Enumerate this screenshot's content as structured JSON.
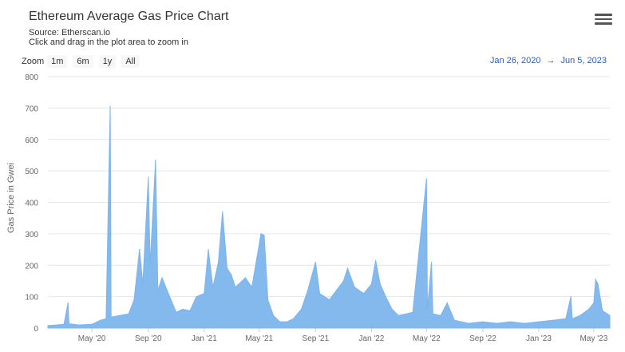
{
  "title": "Ethereum Average Gas Price Chart",
  "subtitle": {
    "source": "Source: Etherscan.io",
    "hint": "Click and drag in the plot area to zoom in"
  },
  "zoom": {
    "label": "Zoom",
    "buttons": [
      "1m",
      "6m",
      "1y",
      "All"
    ]
  },
  "range": {
    "from": "Jan 26, 2020",
    "arrow": "→",
    "to": "Jun 5, 2023"
  },
  "menu_icon": "hamburger-menu-icon",
  "chart_data": {
    "type": "area",
    "ylabel": "Gas Price in Gwei",
    "ylim": [
      0,
      800
    ],
    "yticks": [
      0,
      100,
      200,
      300,
      400,
      500,
      600,
      700,
      800
    ],
    "xlim": [
      "2020-01-26",
      "2023-06-05"
    ],
    "xticks": [
      {
        "date": "2020-05-01",
        "label": "May '20"
      },
      {
        "date": "2020-09-01",
        "label": "Sep '20"
      },
      {
        "date": "2021-01-01",
        "label": "Jan '21"
      },
      {
        "date": "2021-05-01",
        "label": "May '21"
      },
      {
        "date": "2021-09-01",
        "label": "Sep '21"
      },
      {
        "date": "2022-01-01",
        "label": "Jan '22"
      },
      {
        "date": "2022-05-01",
        "label": "May '22"
      },
      {
        "date": "2022-09-01",
        "label": "Sep '22"
      },
      {
        "date": "2023-01-01",
        "label": "Jan '23"
      },
      {
        "date": "2023-05-01",
        "label": "May '23"
      }
    ],
    "color": "#7cb5ec",
    "grid": true,
    "points": [
      [
        "2020-01-26",
        8
      ],
      [
        "2020-02-15",
        10
      ],
      [
        "2020-03-01",
        12
      ],
      [
        "2020-03-10",
        80
      ],
      [
        "2020-03-12",
        14
      ],
      [
        "2020-04-01",
        10
      ],
      [
        "2020-05-01",
        12
      ],
      [
        "2020-05-20",
        25
      ],
      [
        "2020-06-01",
        30
      ],
      [
        "2020-06-10",
        705
      ],
      [
        "2020-06-12",
        35
      ],
      [
        "2020-07-01",
        40
      ],
      [
        "2020-07-20",
        45
      ],
      [
        "2020-08-01",
        90
      ],
      [
        "2020-08-13",
        250
      ],
      [
        "2020-08-20",
        140
      ],
      [
        "2020-09-01",
        480
      ],
      [
        "2020-09-05",
        200
      ],
      [
        "2020-09-17",
        535
      ],
      [
        "2020-09-22",
        120
      ],
      [
        "2020-10-01",
        160
      ],
      [
        "2020-10-15",
        110
      ],
      [
        "2020-11-01",
        50
      ],
      [
        "2020-11-15",
        60
      ],
      [
        "2020-12-01",
        55
      ],
      [
        "2020-12-15",
        100
      ],
      [
        "2021-01-01",
        110
      ],
      [
        "2021-01-10",
        250
      ],
      [
        "2021-01-20",
        130
      ],
      [
        "2021-02-01",
        210
      ],
      [
        "2021-02-10",
        370
      ],
      [
        "2021-02-20",
        190
      ],
      [
        "2021-03-01",
        170
      ],
      [
        "2021-03-10",
        130
      ],
      [
        "2021-04-01",
        160
      ],
      [
        "2021-04-15",
        130
      ],
      [
        "2021-05-05",
        300
      ],
      [
        "2021-05-12",
        295
      ],
      [
        "2021-05-20",
        90
      ],
      [
        "2021-06-01",
        40
      ],
      [
        "2021-06-15",
        20
      ],
      [
        "2021-07-01",
        20
      ],
      [
        "2021-07-15",
        30
      ],
      [
        "2021-08-01",
        60
      ],
      [
        "2021-08-15",
        120
      ],
      [
        "2021-09-01",
        210
      ],
      [
        "2021-09-10",
        110
      ],
      [
        "2021-10-01",
        90
      ],
      [
        "2021-11-01",
        150
      ],
      [
        "2021-11-10",
        190
      ],
      [
        "2021-11-25",
        130
      ],
      [
        "2021-12-15",
        110
      ],
      [
        "2022-01-01",
        140
      ],
      [
        "2022-01-10",
        215
      ],
      [
        "2022-01-20",
        140
      ],
      [
        "2022-02-01",
        100
      ],
      [
        "2022-02-15",
        60
      ],
      [
        "2022-03-01",
        40
      ],
      [
        "2022-04-01",
        50
      ],
      [
        "2022-05-01",
        475
      ],
      [
        "2022-05-03",
        60
      ],
      [
        "2022-05-12",
        210
      ],
      [
        "2022-05-15",
        45
      ],
      [
        "2022-06-01",
        40
      ],
      [
        "2022-06-15",
        80
      ],
      [
        "2022-07-01",
        25
      ],
      [
        "2022-08-01",
        15
      ],
      [
        "2022-09-01",
        20
      ],
      [
        "2022-10-01",
        15
      ],
      [
        "2022-11-01",
        20
      ],
      [
        "2022-12-01",
        15
      ],
      [
        "2023-01-01",
        20
      ],
      [
        "2023-02-01",
        25
      ],
      [
        "2023-03-01",
        30
      ],
      [
        "2023-03-12",
        100
      ],
      [
        "2023-03-15",
        30
      ],
      [
        "2023-04-01",
        40
      ],
      [
        "2023-04-20",
        60
      ],
      [
        "2023-05-01",
        80
      ],
      [
        "2023-05-05",
        155
      ],
      [
        "2023-05-10",
        140
      ],
      [
        "2023-05-20",
        55
      ],
      [
        "2023-06-05",
        40
      ]
    ]
  }
}
